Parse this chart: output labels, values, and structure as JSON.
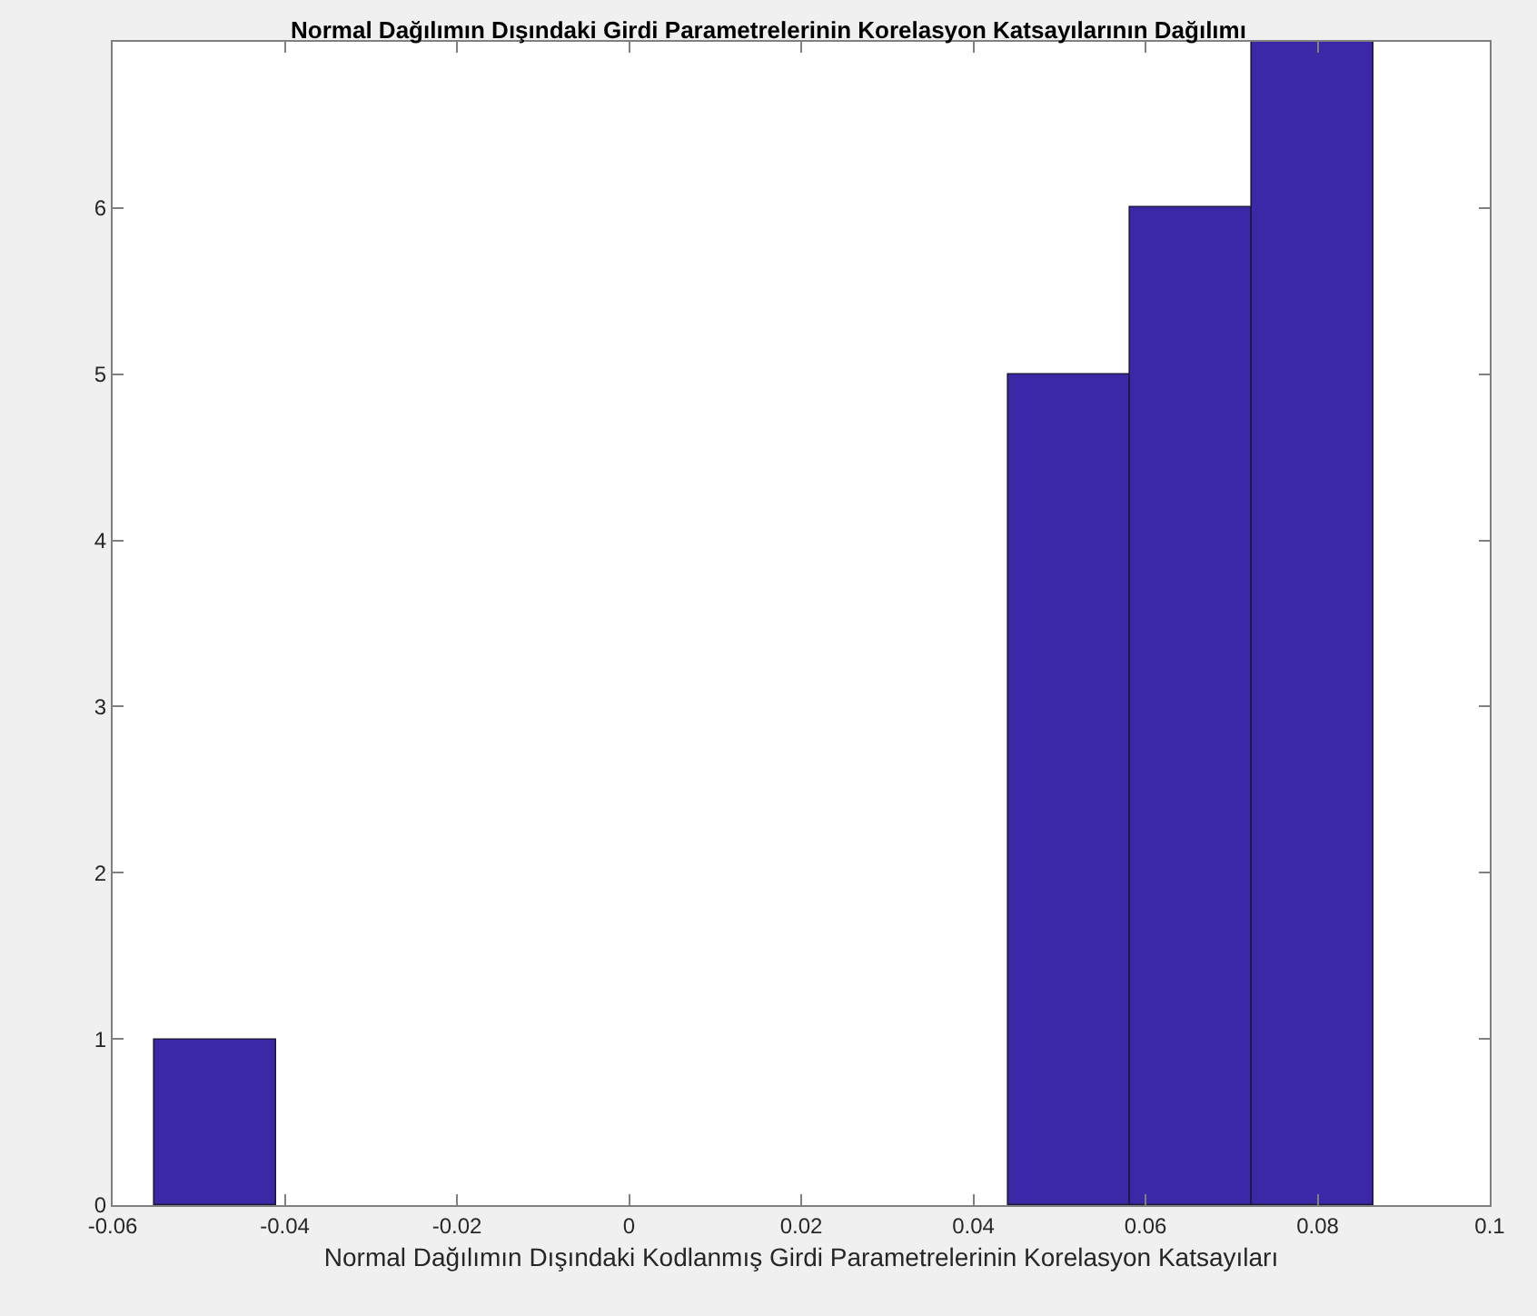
{
  "chart_data": {
    "type": "histogram",
    "title": "Normal Dağılımın Dışındaki Girdi Parametrelerinin Korelasyon Katsayılarının Dağılımı",
    "xlabel": "Normal Dağılımın Dışındaki Kodlanmış Girdi Parametrelerinin Korelasyon Katsayıları",
    "bins": [
      -0.0551,
      -0.0409,
      0.044,
      0.0582,
      0.0723,
      0.0865
    ],
    "values": [
      1,
      0,
      5,
      6,
      7
    ],
    "color": "#3b28a6",
    "xlim": [
      -0.06,
      0.1
    ],
    "xticks": [
      -0.06,
      -0.04,
      -0.02,
      0,
      0.02,
      0.04,
      0.06,
      0.08,
      0.1
    ],
    "ylim": [
      0,
      7
    ],
    "yticks": [
      0,
      1,
      2,
      3,
      4,
      5,
      6
    ],
    "grid": false
  }
}
